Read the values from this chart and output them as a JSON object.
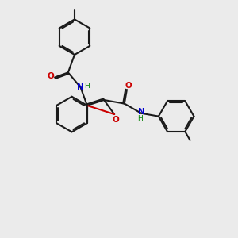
{
  "bg_color": "#ebebeb",
  "bond_color": "#1a1a1a",
  "O_color": "#cc0000",
  "N_color": "#0000cc",
  "H_color": "#008000",
  "lw": 1.5,
  "dbl_off": 0.06,
  "xlim": [
    0,
    10
  ],
  "ylim": [
    0,
    10
  ]
}
